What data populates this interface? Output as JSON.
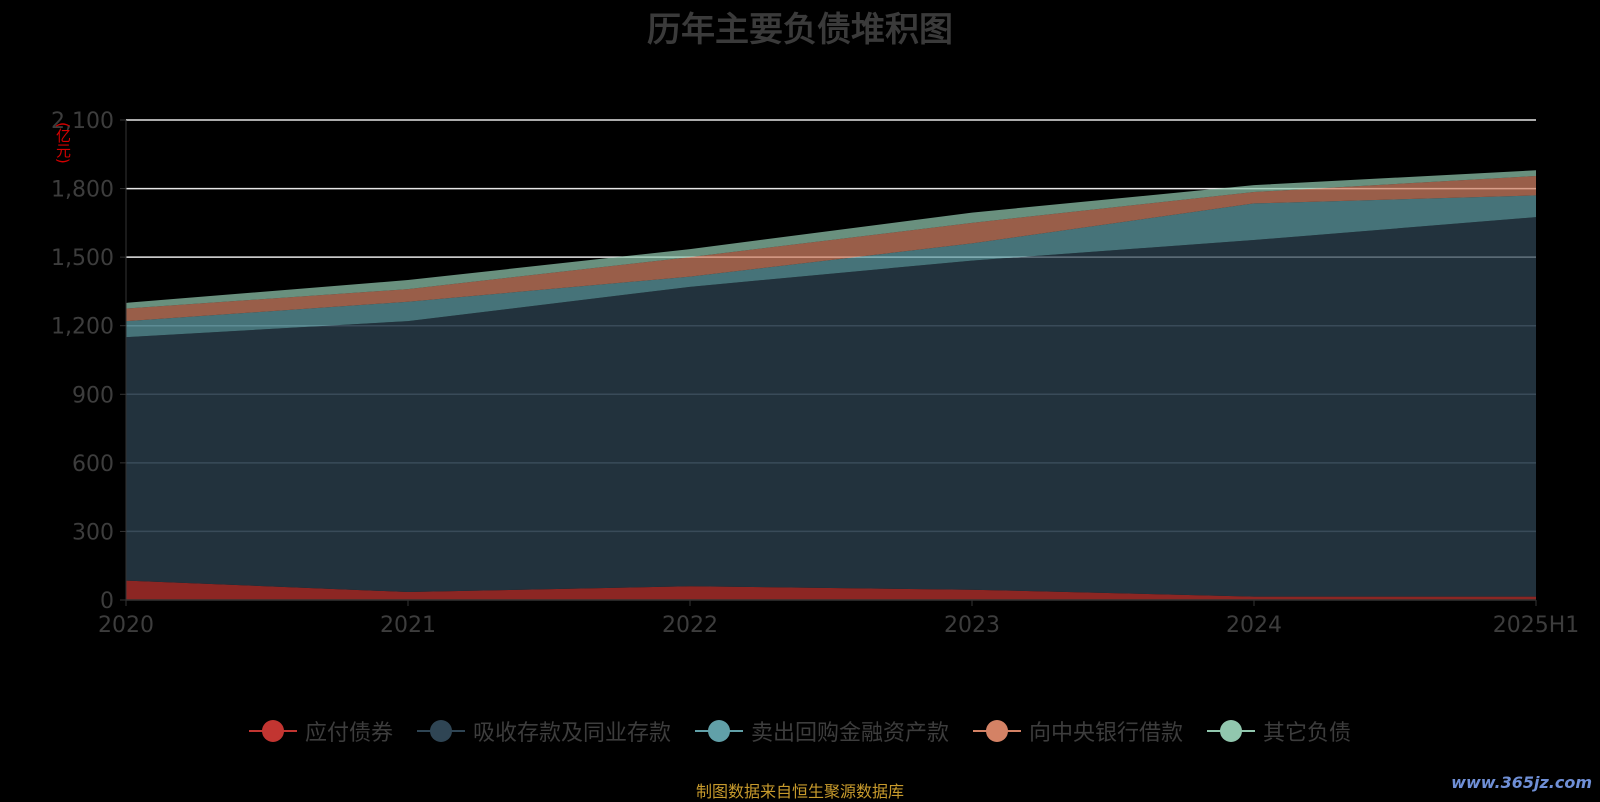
{
  "title": "历年主要负债堆积图",
  "unit": "(亿元)",
  "footer": "制图数据来自恒生聚源数据库",
  "watermark": "www.365jz.com",
  "chart_data": {
    "type": "area",
    "stacked": true,
    "categories": [
      "2020",
      "2021",
      "2022",
      "2023",
      "2024",
      "2025H1"
    ],
    "ylim": [
      0,
      2100
    ],
    "yticks": [
      0,
      300,
      600,
      900,
      1200,
      1500,
      1800,
      2100
    ],
    "ytick_labels": [
      "0",
      "300",
      "600",
      "900",
      "1,200",
      "1,500",
      "1,800",
      "2,100"
    ],
    "ylabel": "(亿元)",
    "legend_position": "bottom",
    "series": [
      {
        "name": "应付债券",
        "color": "#c23531",
        "values": [
          85,
          35,
          60,
          45,
          15,
          15
        ]
      },
      {
        "name": "吸收存款及同业存款",
        "color": "#2f4554",
        "values": [
          1065,
          1185,
          1310,
          1440,
          1560,
          1660
        ]
      },
      {
        "name": "卖出回购金融资产款",
        "color": "#61a0a8",
        "values": [
          70,
          85,
          45,
          75,
          160,
          95
        ]
      },
      {
        "name": "向中央银行借款",
        "color": "#d48265",
        "values": [
          55,
          55,
          85,
          90,
          50,
          85
        ]
      },
      {
        "name": "其它负债",
        "color": "#91c7ae",
        "values": [
          25,
          40,
          35,
          45,
          30,
          25
        ]
      }
    ]
  }
}
